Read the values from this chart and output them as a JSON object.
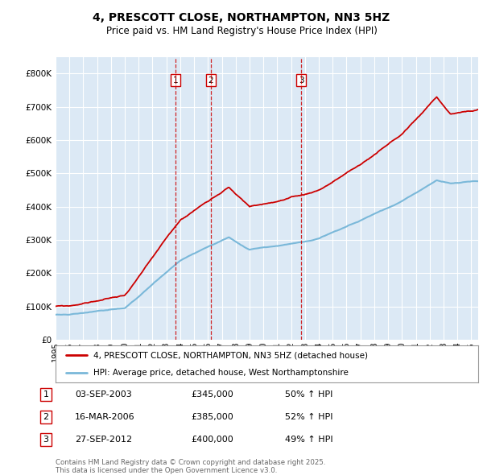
{
  "title": "4, PRESCOTT CLOSE, NORTHAMPTON, NN3 5HZ",
  "subtitle": "Price paid vs. HM Land Registry's House Price Index (HPI)",
  "bg_color": "#dce9f5",
  "plot_bg_color": "#dce9f5",
  "hpi_color": "#7ab8d9",
  "price_color": "#cc0000",
  "vline_color": "#cc0000",
  "ylim": [
    0,
    850000
  ],
  "yticks": [
    0,
    100000,
    200000,
    300000,
    400000,
    500000,
    600000,
    700000,
    800000
  ],
  "transactions": [
    {
      "label": "1",
      "date": "03-SEP-2003",
      "price": 345000,
      "pct": "50%",
      "x_year": 2003.67
    },
    {
      "label": "2",
      "date": "16-MAR-2006",
      "price": 385000,
      "pct": "52%",
      "x_year": 2006.21
    },
    {
      "label": "3",
      "date": "27-SEP-2012",
      "price": 400000,
      "pct": "49%",
      "x_year": 2012.74
    }
  ],
  "legend_line1": "4, PRESCOTT CLOSE, NORTHAMPTON, NN3 5HZ (detached house)",
  "legend_line2": "HPI: Average price, detached house, West Northamptonshire",
  "footer_line1": "Contains HM Land Registry data © Crown copyright and database right 2025.",
  "footer_line2": "This data is licensed under the Open Government Licence v3.0.",
  "xmin": 1995.0,
  "xmax": 2025.5
}
